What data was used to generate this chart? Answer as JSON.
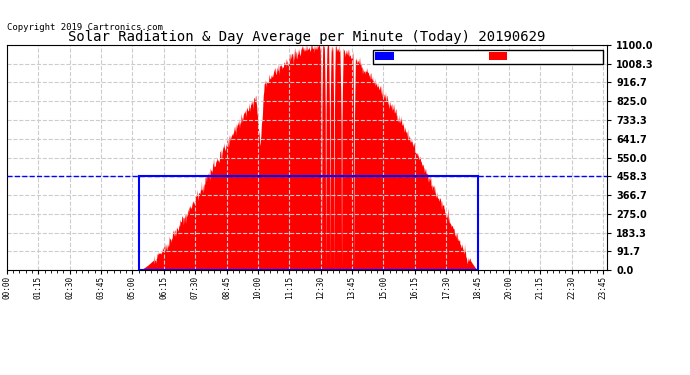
{
  "title": "Solar Radiation & Day Average per Minute (Today) 20190629",
  "copyright": "Copyright 2019 Cartronics.com",
  "yticks": [
    0.0,
    91.7,
    183.3,
    275.0,
    366.7,
    458.3,
    550.0,
    641.7,
    733.3,
    825.0,
    916.7,
    1008.3,
    1100.0
  ],
  "ylim": [
    0.0,
    1100.0
  ],
  "xlim": [
    0,
    1435
  ],
  "bg_color": "#ffffff",
  "grid_color": "#cccccc",
  "radiation_color": "#ff0000",
  "median_color": "#0000ff",
  "median_value": 458.3,
  "sunrise_minute": 315,
  "sunset_minute": 1125,
  "legend_median_bg": "#0000ff",
  "legend_radiation_bg": "#ff0000",
  "peak_minute": 755,
  "peak_value": 1100.0,
  "xtick_step": 5,
  "xtick_label_step": 75
}
